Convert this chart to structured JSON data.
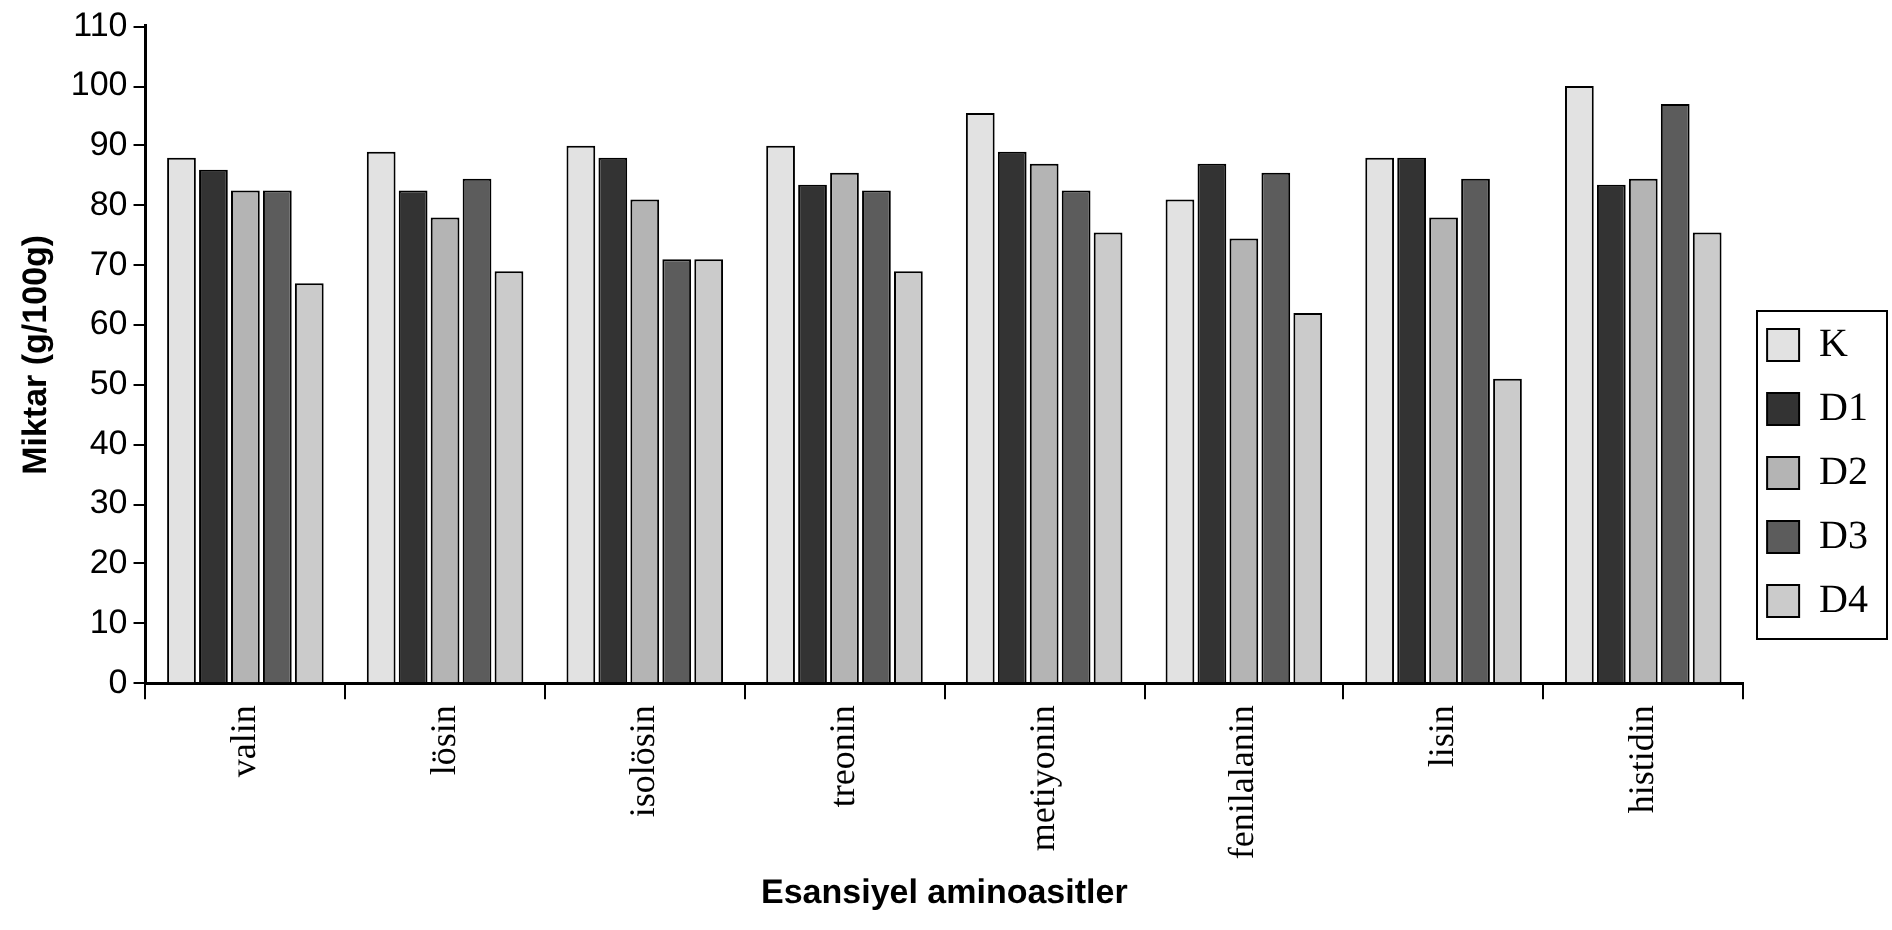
{
  "chart_data": {
    "type": "bar",
    "xlabel": "Esansiyel aminoasitler",
    "ylabel": "Miktar (g/100g)",
    "categories": [
      "valin",
      "lösin",
      "isolösin",
      "treonin",
      "metiyonin",
      "fenilalanin",
      "lisin",
      "histidin"
    ],
    "series": [
      {
        "name": "K",
        "color": "#e2e2e2",
        "values": [
          88,
          89,
          90,
          90,
          95.5,
          81,
          88,
          100
        ]
      },
      {
        "name": "D1",
        "color": "#333333",
        "values": [
          86,
          82.5,
          88,
          83.5,
          89,
          87,
          88,
          83.5
        ]
      },
      {
        "name": "D2",
        "color": "#b4b4b4",
        "values": [
          82.5,
          78,
          81,
          85.5,
          87,
          74.5,
          78,
          84.5
        ]
      },
      {
        "name": "D3",
        "color": "#5c5c5c",
        "values": [
          82.5,
          84.5,
          71,
          82.5,
          82.5,
          85.5,
          84.5,
          97
        ]
      },
      {
        "name": "D4",
        "color": "#cbcbcb",
        "values": [
          67,
          69,
          71,
          69,
          75.5,
          62,
          51,
          75.5
        ]
      }
    ],
    "ylim": [
      0,
      110
    ],
    "yticks": [
      0,
      10,
      20,
      30,
      40,
      50,
      60,
      70,
      80,
      90,
      100,
      110
    ],
    "grid": false,
    "legend": "right"
  }
}
